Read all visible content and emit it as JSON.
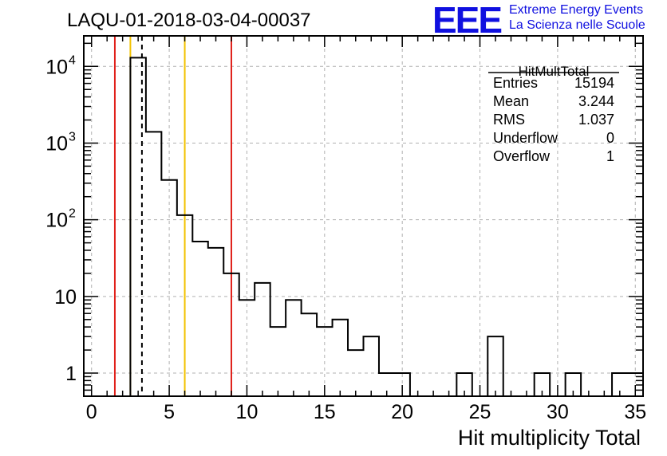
{
  "logo": {
    "text": "EEE",
    "line1": "Extreme Energy Events",
    "line2": "La Scienza nelle Scuole"
  },
  "chart_data": {
    "type": "histogram",
    "title": "LAQU-01-2018-03-04-00037",
    "xlabel": "Hit multiplicity Total",
    "ylabel": "",
    "yscale": "log",
    "xlim": [
      -0.5,
      35.5
    ],
    "ylim": [
      0.5,
      25000
    ],
    "bin_width": 1,
    "x_ticks": [
      0,
      5,
      10,
      15,
      20,
      25,
      30,
      35
    ],
    "x_tick_labels": [
      "0",
      "5",
      "10",
      "15",
      "20",
      "25",
      "30",
      "35"
    ],
    "y_ticks": [
      1,
      10,
      100,
      1000,
      10000
    ],
    "y_tick_labels": [
      {
        "base": "1",
        "exp": ""
      },
      {
        "base": "10",
        "exp": ""
      },
      {
        "base": "10",
        "exp": "2"
      },
      {
        "base": "10",
        "exp": "3"
      },
      {
        "base": "10",
        "exp": "4"
      }
    ],
    "bins": [
      {
        "x": 3,
        "count": 13000
      },
      {
        "x": 4,
        "count": 1400
      },
      {
        "x": 5,
        "count": 330
      },
      {
        "x": 6,
        "count": 115
      },
      {
        "x": 7,
        "count": 52
      },
      {
        "x": 8,
        "count": 43
      },
      {
        "x": 9,
        "count": 20
      },
      {
        "x": 10,
        "count": 9
      },
      {
        "x": 11,
        "count": 15
      },
      {
        "x": 12,
        "count": 4
      },
      {
        "x": 13,
        "count": 9
      },
      {
        "x": 14,
        "count": 6
      },
      {
        "x": 15,
        "count": 4
      },
      {
        "x": 16,
        "count": 5
      },
      {
        "x": 17,
        "count": 2
      },
      {
        "x": 18,
        "count": 3
      },
      {
        "x": 19,
        "count": 1
      },
      {
        "x": 20,
        "count": 1
      },
      {
        "x": 24,
        "count": 1
      },
      {
        "x": 26,
        "count": 3
      },
      {
        "x": 29,
        "count": 1
      },
      {
        "x": 31,
        "count": 1
      },
      {
        "x": 34,
        "count": 1
      },
      {
        "x": 35,
        "count": 1
      }
    ],
    "vertical_lines": [
      {
        "x": 1.5,
        "color": "#e0201a",
        "style": "solid"
      },
      {
        "x": 2.5,
        "color": "#f2c200",
        "style": "solid"
      },
      {
        "x": 3.244,
        "color": "#000000",
        "style": "dashed"
      },
      {
        "x": 6.0,
        "color": "#f2c200",
        "style": "solid"
      },
      {
        "x": 9.0,
        "color": "#e0201a",
        "style": "solid"
      }
    ],
    "stats": {
      "name": "HitMultTotal",
      "rows": [
        {
          "label": "Entries",
          "value": "15194"
        },
        {
          "label": "Mean",
          "value": "3.244"
        },
        {
          "label": "RMS",
          "value": "1.037"
        },
        {
          "label": "Underflow",
          "value": "0"
        },
        {
          "label": "Overflow",
          "value": "1"
        }
      ]
    }
  }
}
